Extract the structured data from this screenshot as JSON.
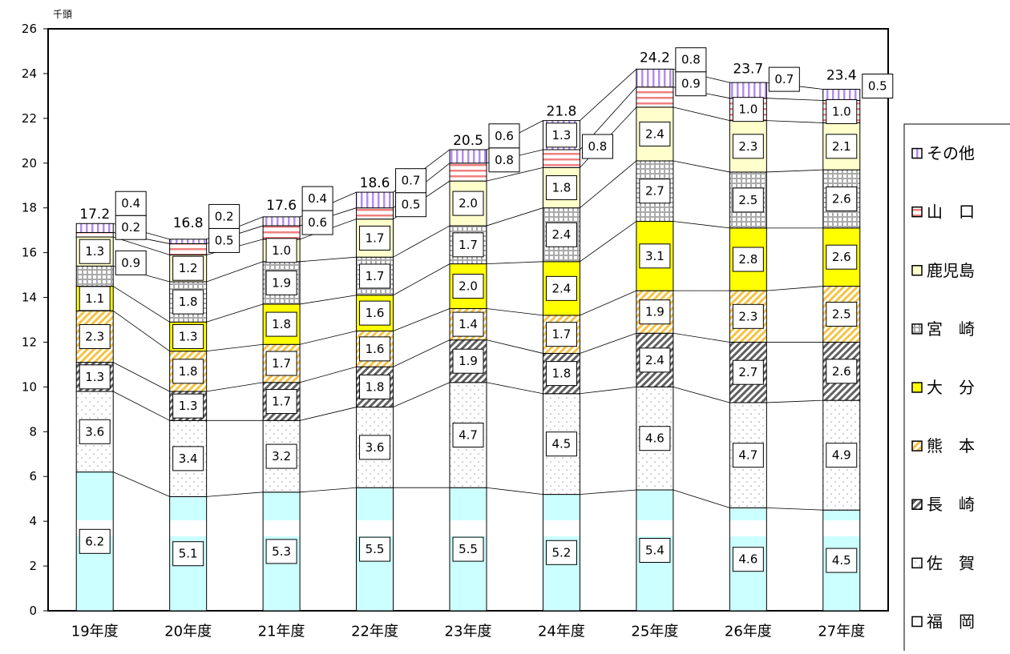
{
  "chart_data": {
    "type": "bar",
    "stacked": true,
    "unit_label": "千頭",
    "ylim": [
      0,
      26
    ],
    "yticks": [
      0,
      2,
      4,
      6,
      8,
      10,
      12,
      14,
      16,
      18,
      20,
      22,
      24,
      26
    ],
    "grid": false,
    "legend_position": "right",
    "categories": [
      "19年度",
      "20年度",
      "21年度",
      "22年度",
      "23年度",
      "24年度",
      "25年度",
      "26年度",
      "27年度"
    ],
    "totals": [
      17.2,
      16.8,
      17.6,
      18.6,
      20.5,
      21.8,
      24.2,
      23.7,
      23.4
    ],
    "series": [
      {
        "name": "福　岡",
        "values": [
          6.2,
          5.1,
          5.3,
          5.5,
          5.5,
          5.2,
          5.4,
          4.6,
          4.5
        ],
        "color": "#ccffff",
        "pattern": "bluebands"
      },
      {
        "name": "佐　賀",
        "values": [
          3.6,
          3.4,
          3.2,
          3.6,
          4.7,
          4.5,
          4.6,
          4.7,
          4.9
        ],
        "color": "#ffffff",
        "pattern": "dots"
      },
      {
        "name": "長　崎",
        "values": [
          1.3,
          1.3,
          1.7,
          1.8,
          1.9,
          1.8,
          2.4,
          2.7,
          2.6
        ],
        "color": "#ffffff",
        "pattern": "diagonal"
      },
      {
        "name": "熊　本",
        "values": [
          2.3,
          1.8,
          1.7,
          1.6,
          1.4,
          1.7,
          1.9,
          2.3,
          2.5
        ],
        "color": "#ffd966",
        "pattern": "diagonal-yellow"
      },
      {
        "name": "大　分",
        "values": [
          1.1,
          1.3,
          1.8,
          1.6,
          2.0,
          2.4,
          3.1,
          2.8,
          2.6
        ],
        "color": "#ffff00",
        "pattern": "solid"
      },
      {
        "name": "宮　崎",
        "values": [
          0.9,
          1.8,
          1.9,
          1.7,
          1.7,
          2.4,
          2.7,
          2.5,
          2.6
        ],
        "color": "#ffffff",
        "pattern": "grid"
      },
      {
        "name": "鹿児島",
        "values": [
          1.3,
          1.2,
          1.0,
          1.7,
          2.0,
          1.8,
          2.4,
          2.3,
          2.1
        ],
        "color": "#ffffcc",
        "pattern": "solid"
      },
      {
        "name": "山　口",
        "values": [
          0.2,
          0.5,
          0.6,
          0.5,
          0.8,
          0.8,
          0.9,
          1.0,
          1.0
        ],
        "color": "#ffffff",
        "pattern": "hstripe"
      },
      {
        "name": "その他",
        "values": [
          0.4,
          0.2,
          0.4,
          0.7,
          0.6,
          1.3,
          0.8,
          0.7,
          0.5
        ],
        "color": "#ffffff",
        "pattern": "vstripe"
      }
    ]
  }
}
